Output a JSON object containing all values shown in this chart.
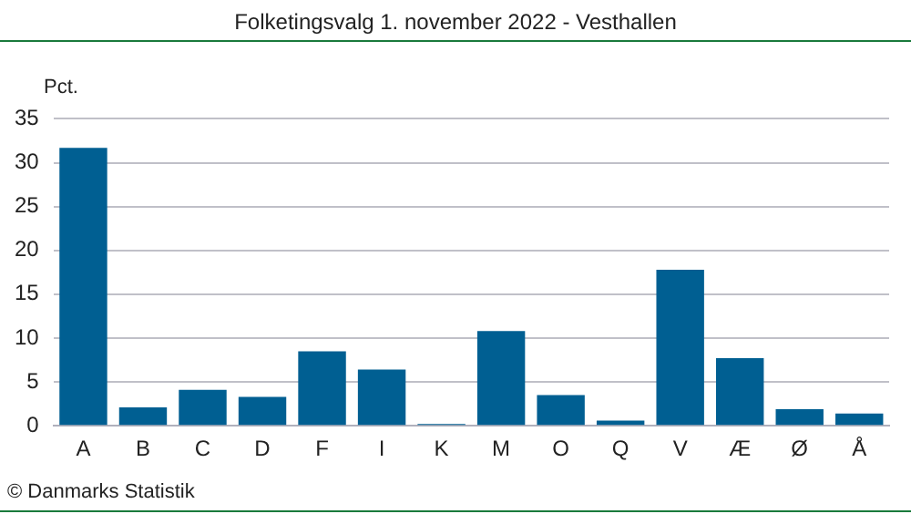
{
  "chart_data": {
    "type": "bar",
    "title": "Folketingsvalg 1. november 2022 - Vesthallen",
    "ylabel": "Pct.",
    "annotations": [
      "© Danmarks Statistik"
    ],
    "categories": [
      "A",
      "B",
      "C",
      "D",
      "F",
      "I",
      "K",
      "M",
      "O",
      "Q",
      "V",
      "Æ",
      "Ø",
      "Å"
    ],
    "values": [
      31.7,
      2.1,
      4.1,
      3.3,
      8.5,
      6.4,
      0.2,
      10.8,
      3.5,
      0.6,
      17.8,
      7.7,
      1.9,
      1.4
    ],
    "color": "#005f92",
    "ylim": [
      0,
      35
    ],
    "yticks": [
      0,
      5,
      10,
      15,
      20,
      25,
      30,
      35
    ],
    "grid": "y",
    "legend": false
  }
}
